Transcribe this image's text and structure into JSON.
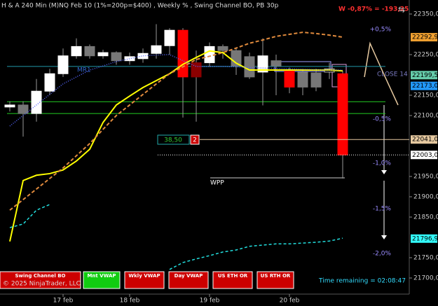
{
  "header": {
    "title": "H & A 240 Min (M)NQ Feb 10  (1%=200p=$400) , Weekly % , Swing Channel BO, PB 30p",
    "weekly_change": "W -0,87% = -193,25"
  },
  "chart_data": {
    "type": "candlestick",
    "categories": [
      null,
      null,
      null,
      null,
      "17 feb",
      null,
      null,
      null,
      null,
      "18 feb",
      null,
      null,
      null,
      null,
      null,
      "19 feb",
      null,
      null,
      null,
      null,
      null,
      "20 feb",
      null,
      null,
      null,
      null
    ],
    "open": [
      22121,
      22126,
      22105,
      22160,
      22203,
      22247,
      22270,
      22247,
      22255,
      22235,
      22240,
      22253,
      22272,
      22310,
      22230,
      22230,
      22270,
      22260,
      22245,
      22207,
      22235,
      22212,
      22207,
      22205,
      22207,
      22203
    ],
    "high": [
      22135,
      22135,
      22190,
      22215,
      22265,
      22290,
      22275,
      22262,
      22258,
      22255,
      22265,
      22325,
      22315,
      22315,
      22260,
      22280,
      22275,
      22268,
      22255,
      22290,
      22250,
      22218,
      22215,
      22215,
      22230,
      22210
    ],
    "low": [
      22110,
      22048,
      22085,
      22150,
      22195,
      22240,
      22240,
      22240,
      22225,
      22225,
      22230,
      22240,
      22250,
      22095,
      22085,
      22220,
      22240,
      22200,
      22190,
      22125,
      22150,
      22155,
      22150,
      22160,
      22190,
      21945
    ],
    "close": [
      22126,
      22105,
      22160,
      22203,
      22247,
      22270,
      22247,
      22255,
      22235,
      22245,
      22253,
      22272,
      22310,
      22195,
      22195,
      22270,
      22260,
      22222,
      22195,
      22247,
      22222,
      22170,
      22170,
      22170,
      22215,
      22003
    ],
    "candle_colors": [
      "#ffffff",
      "#777777",
      "#ffffff",
      "#ffffff",
      "#ffffff",
      "#ffffff",
      "#777777",
      "#ffffff",
      "#777777",
      "#ffffff",
      "#ffffff",
      "#ffffff",
      "#ffffff",
      "#ff0000",
      "#8b0000",
      "#ffffff",
      "#777777",
      "#777777",
      "#777777",
      "#ffffff",
      "#777777",
      "#ff0000",
      "#777777",
      "#777777",
      "#000000",
      "#ff0000"
    ],
    "series": [
      {
        "color": "#ffff00",
        "dash": "",
        "width": 2,
        "values": [
          21790,
          21940,
          21953,
          21957,
          21966,
          21988,
          22017,
          22083,
          22126,
          22148,
          22169,
          22186,
          22203,
          22226,
          22243,
          22259,
          22255,
          22229,
          22212,
          22212,
          22212,
          22212,
          22212,
          22212,
          22212,
          22210
        ]
      },
      {
        "color": "#e08a3c",
        "dash": "5 3",
        "width": 2,
        "values": [
          21867,
          21893,
          21919,
          21945,
          21971,
          22001,
          22031,
          22066,
          22100,
          22126,
          22152,
          22178,
          22203,
          22220,
          22238,
          22246,
          22255,
          22266,
          22278,
          22286,
          22295,
          22300,
          22305,
          22302,
          22298,
          22293
        ]
      },
      {
        "color": "#5566ff",
        "dash": "1 2",
        "width": 1.5,
        "values": [
          22074,
          22100,
          22126,
          22152,
          22178,
          22195,
          22212,
          22222,
          22233,
          22240,
          22247,
          22249,
          22250,
          22235,
          22221,
          22221,
          22221,
          22220,
          22218,
          22217,
          22216,
          22215,
          22214,
          22213,
          22212,
          22212
        ]
      },
      {
        "color": "#22dddd",
        "dash": "4 3",
        "width": 1.5,
        "values": [
          21824,
          21833,
          21867,
          21881,
          null,
          null,
          null,
          null,
          null,
          null,
          null,
          null,
          21721,
          21738,
          21747,
          21755,
          21764,
          21769,
          21778,
          21781,
          21784,
          21784,
          21786,
          21788,
          21791,
          21798
        ]
      }
    ],
    "levels": [
      {
        "value": 22134,
        "color": "#22cc22"
      },
      {
        "value": 22105,
        "color": "#22cc22"
      },
      {
        "value": 22221,
        "color": "#2299aa"
      }
    ],
    "ylim": [
      21700,
      22350
    ],
    "yticks": [
      {
        "value": 22350,
        "label": "22350,00"
      },
      {
        "value": 22250,
        "label": "22250,00"
      },
      {
        "value": 22150,
        "label": "22150,00"
      },
      {
        "value": 22100,
        "label": "22100,00"
      },
      {
        "value": 21950,
        "label": "21950,00"
      },
      {
        "value": 21900,
        "label": "21900,00"
      },
      {
        "value": 21850,
        "label": "21850,00"
      },
      {
        "value": 21750,
        "label": "21750,00"
      },
      {
        "value": 21700,
        "label": "21700,00"
      }
    ],
    "price_markers": [
      {
        "value": 22292.9,
        "label": "22292,90",
        "color": "#f0a030"
      },
      {
        "value": 22199.53,
        "label": "22199,53",
        "color": "#66ccaa"
      },
      {
        "value": 22173,
        "label": "22173,00",
        "color": "#2299ff"
      },
      {
        "value": 22041,
        "label": "22041,00",
        "color": "#e6c9a0"
      },
      {
        "value": 22003,
        "label": "22003,00",
        "color": "#ffffff"
      },
      {
        "value": 21796.95,
        "label": "21796,95",
        "color": "#33ffff"
      }
    ],
    "percent_levels": [
      {
        "value": 22312,
        "label": "+0,5%"
      },
      {
        "value": 22091,
        "label": "-0,5%"
      },
      {
        "value": 21983,
        "label": "-1,0%"
      },
      {
        "value": 21871,
        "label": "-1,5%"
      },
      {
        "value": 21760,
        "label": "-2,0%"
      }
    ],
    "annotations": {
      "mr1": "MR1",
      "close": "CLOSE 14",
      "wpp": "WPP",
      "box": "38,50",
      "count": "2"
    }
  },
  "buttons": [
    "Swing Channel BO",
    "Mnt VWAP",
    "Wkly VWAP",
    "Day VWAP",
    "US ETH OR",
    "US RTH OR"
  ],
  "footer": {
    "copyright": "© 2025 NinjaTrader, LLC",
    "time_remaining": "Time remaining = 02:08:47"
  }
}
